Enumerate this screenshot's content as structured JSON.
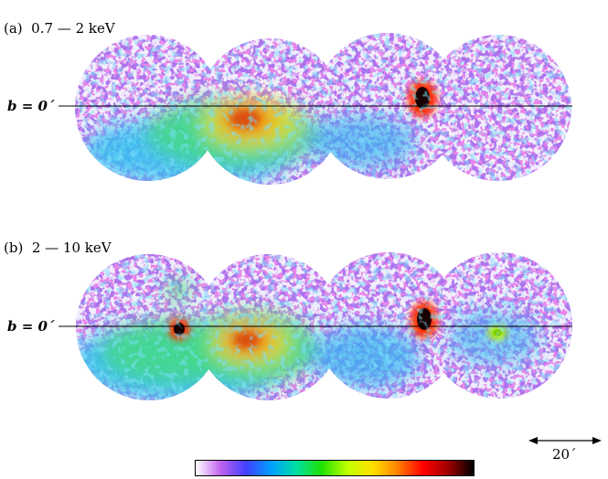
{
  "panels": [
    {
      "label": "(a)  0.7 — 2 keV",
      "line_label": "b = 0´",
      "bright_sources": [
        {
          "kind": "extended diffuse",
          "color": "#d84a10"
        },
        {
          "kind": "point",
          "color": "#1a0000"
        }
      ]
    },
    {
      "label": "(b)  2 — 10 keV",
      "line_label": "b = 0´",
      "bright_sources": [
        {
          "kind": "point",
          "color": "#1a0000"
        },
        {
          "kind": "extended diffuse",
          "color": "#d84a10"
        },
        {
          "kind": "point",
          "color": "#1a0000"
        },
        {
          "kind": "point",
          "color": "#7fd000"
        }
      ]
    }
  ],
  "scale_bar": {
    "label": "20´"
  },
  "colorbar": {
    "stops": [
      "#ffffff",
      "#c060f0",
      "#4040ff",
      "#00a0ff",
      "#00e0a0",
      "#20e000",
      "#c0ff00",
      "#ffe000",
      "#ff8000",
      "#ff0000",
      "#a00000",
      "#000000"
    ]
  },
  "palette": {
    "background_noise": "#6a2bd8",
    "noise_accent": "#d23cd0",
    "diffuse_low": "#33c1f0",
    "diffuse_mid": "#45d88a",
    "diffuse_high": "#8ee05a"
  }
}
